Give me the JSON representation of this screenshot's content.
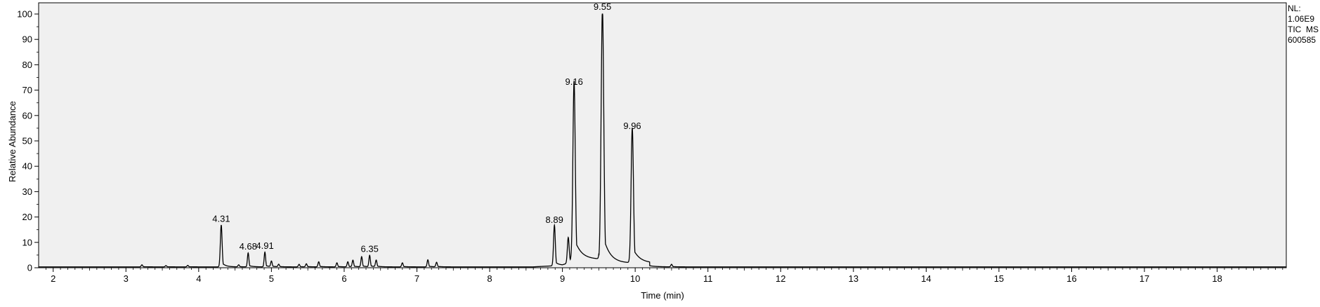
{
  "chart_data": {
    "type": "line",
    "xlabel": "Time (min)",
    "ylabel": "Relative Abundance",
    "xlim": [
      1.8,
      18.95
    ],
    "ylim": [
      0,
      100
    ],
    "x_ticks": [
      "2",
      "3",
      "4",
      "5",
      "6",
      "7",
      "8",
      "9",
      "10",
      "11",
      "12",
      "13",
      "14",
      "15",
      "16",
      "17",
      "18"
    ],
    "y_ticks": [
      "0",
      "10",
      "20",
      "30",
      "40",
      "50",
      "60",
      "70",
      "80",
      "90",
      "100"
    ],
    "grid": false,
    "colors": {
      "trace": "#000000",
      "plot_bg": "#f0f0f0",
      "frame": "#000000"
    },
    "peaks": [
      {
        "x": 3.22,
        "y": 0.8
      },
      {
        "x": 3.55,
        "y": 0.5
      },
      {
        "x": 3.85,
        "y": 0.6
      },
      {
        "x": 4.31,
        "y": 16.5,
        "label": "4.31"
      },
      {
        "x": 4.55,
        "y": 0.8
      },
      {
        "x": 4.68,
        "y": 5.5,
        "label": "4.68"
      },
      {
        "x": 4.91,
        "y": 5.8,
        "label": "4.91"
      },
      {
        "x": 5.0,
        "y": 2.2
      },
      {
        "x": 5.1,
        "y": 1.0
      },
      {
        "x": 5.38,
        "y": 1.0
      },
      {
        "x": 5.48,
        "y": 1.2
      },
      {
        "x": 5.65,
        "y": 2.0
      },
      {
        "x": 5.9,
        "y": 1.6
      },
      {
        "x": 6.05,
        "y": 2.0
      },
      {
        "x": 6.12,
        "y": 2.6
      },
      {
        "x": 6.24,
        "y": 4.0
      },
      {
        "x": 6.35,
        "y": 4.5,
        "label": "6.35"
      },
      {
        "x": 6.44,
        "y": 2.6
      },
      {
        "x": 6.8,
        "y": 1.6
      },
      {
        "x": 7.15,
        "y": 2.8
      },
      {
        "x": 7.27,
        "y": 1.8
      },
      {
        "x": 8.89,
        "y": 16.0,
        "label": "8.89"
      },
      {
        "x": 9.08,
        "y": 10.0
      },
      {
        "x": 9.16,
        "y": 70.5,
        "label": "9.16"
      },
      {
        "x": 9.55,
        "y": 100,
        "label": "9.55"
      },
      {
        "x": 9.96,
        "y": 53,
        "label": "9.96"
      },
      {
        "x": 10.5,
        "y": 1.0
      }
    ]
  },
  "info": {
    "nl_label": "NL:",
    "nl_value": "1.06E9",
    "trace_type": "TIC  MS",
    "file_id": "600585"
  }
}
